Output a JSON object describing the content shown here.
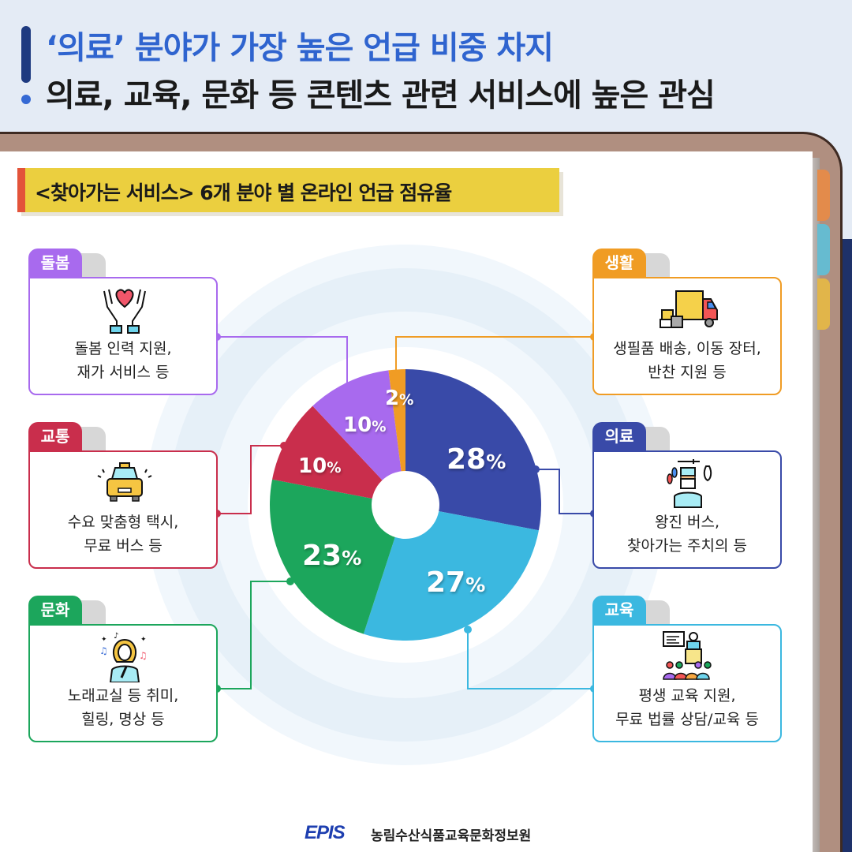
{
  "header": {
    "headline_1": "‘의료’ 분야가 가장 높은 언급 비중 차지",
    "headline_2": "의료, 교육, 문화 등 콘텐츠 관련 서비스에 높은 관심"
  },
  "subtitle": "<찾아가는 서비스> 6개 분야 별 온라인 언급 점유율",
  "cards": [
    {
      "category": "돌봄",
      "icon": "heart-hands-icon",
      "line1": "돌봄 인력 지원,",
      "line2": "재가 서비스 등",
      "color": "#a86aee"
    },
    {
      "category": "교통",
      "icon": "taxi-icon",
      "line1": "수요 맞춤형 택시,",
      "line2": "무료 버스 등",
      "color": "#c92e4c"
    },
    {
      "category": "문화",
      "icon": "singer-icon",
      "line1": "노래교실 등 취미,",
      "line2": "힐링, 명상 등",
      "color": "#1ca65c"
    },
    {
      "category": "생활",
      "icon": "delivery-truck-icon",
      "line1": "생필품 배송, 이동 장터,",
      "line2": "반찬 지원 등",
      "color": "#f09c24"
    },
    {
      "category": "의료",
      "icon": "doctor-icon",
      "line1": "왕진 버스,",
      "line2": "찾아가는 주치의 등",
      "color": "#394aa8"
    },
    {
      "category": "교육",
      "icon": "lecture-icon",
      "line1": "평생 교육 지원,",
      "line2": "무료 법률 상담/교육 등",
      "color": "#3bb8e0"
    }
  ],
  "chart_data": {
    "type": "pie",
    "donut": true,
    "title": "<찾아가는 서비스> 6개 분야 별 온라인 언급 점유율",
    "categories": [
      "의료",
      "교육",
      "문화",
      "교통",
      "돌봄",
      "생활"
    ],
    "values": [
      28,
      27,
      23,
      10,
      10,
      2
    ],
    "unit": "%",
    "colors": [
      "#394aa8",
      "#3bb8e0",
      "#1ca65c",
      "#c92e4c",
      "#a86aee",
      "#f09c24"
    ],
    "labels": [
      "28",
      "27",
      "23",
      "10",
      "10",
      "2"
    ],
    "start_angle": "12 o'clock, clockwise",
    "legend": "callout boxes on left and right sides"
  },
  "footer": {
    "logo": "EPIS",
    "org_name": "농림수산식품교육문화정보원"
  }
}
